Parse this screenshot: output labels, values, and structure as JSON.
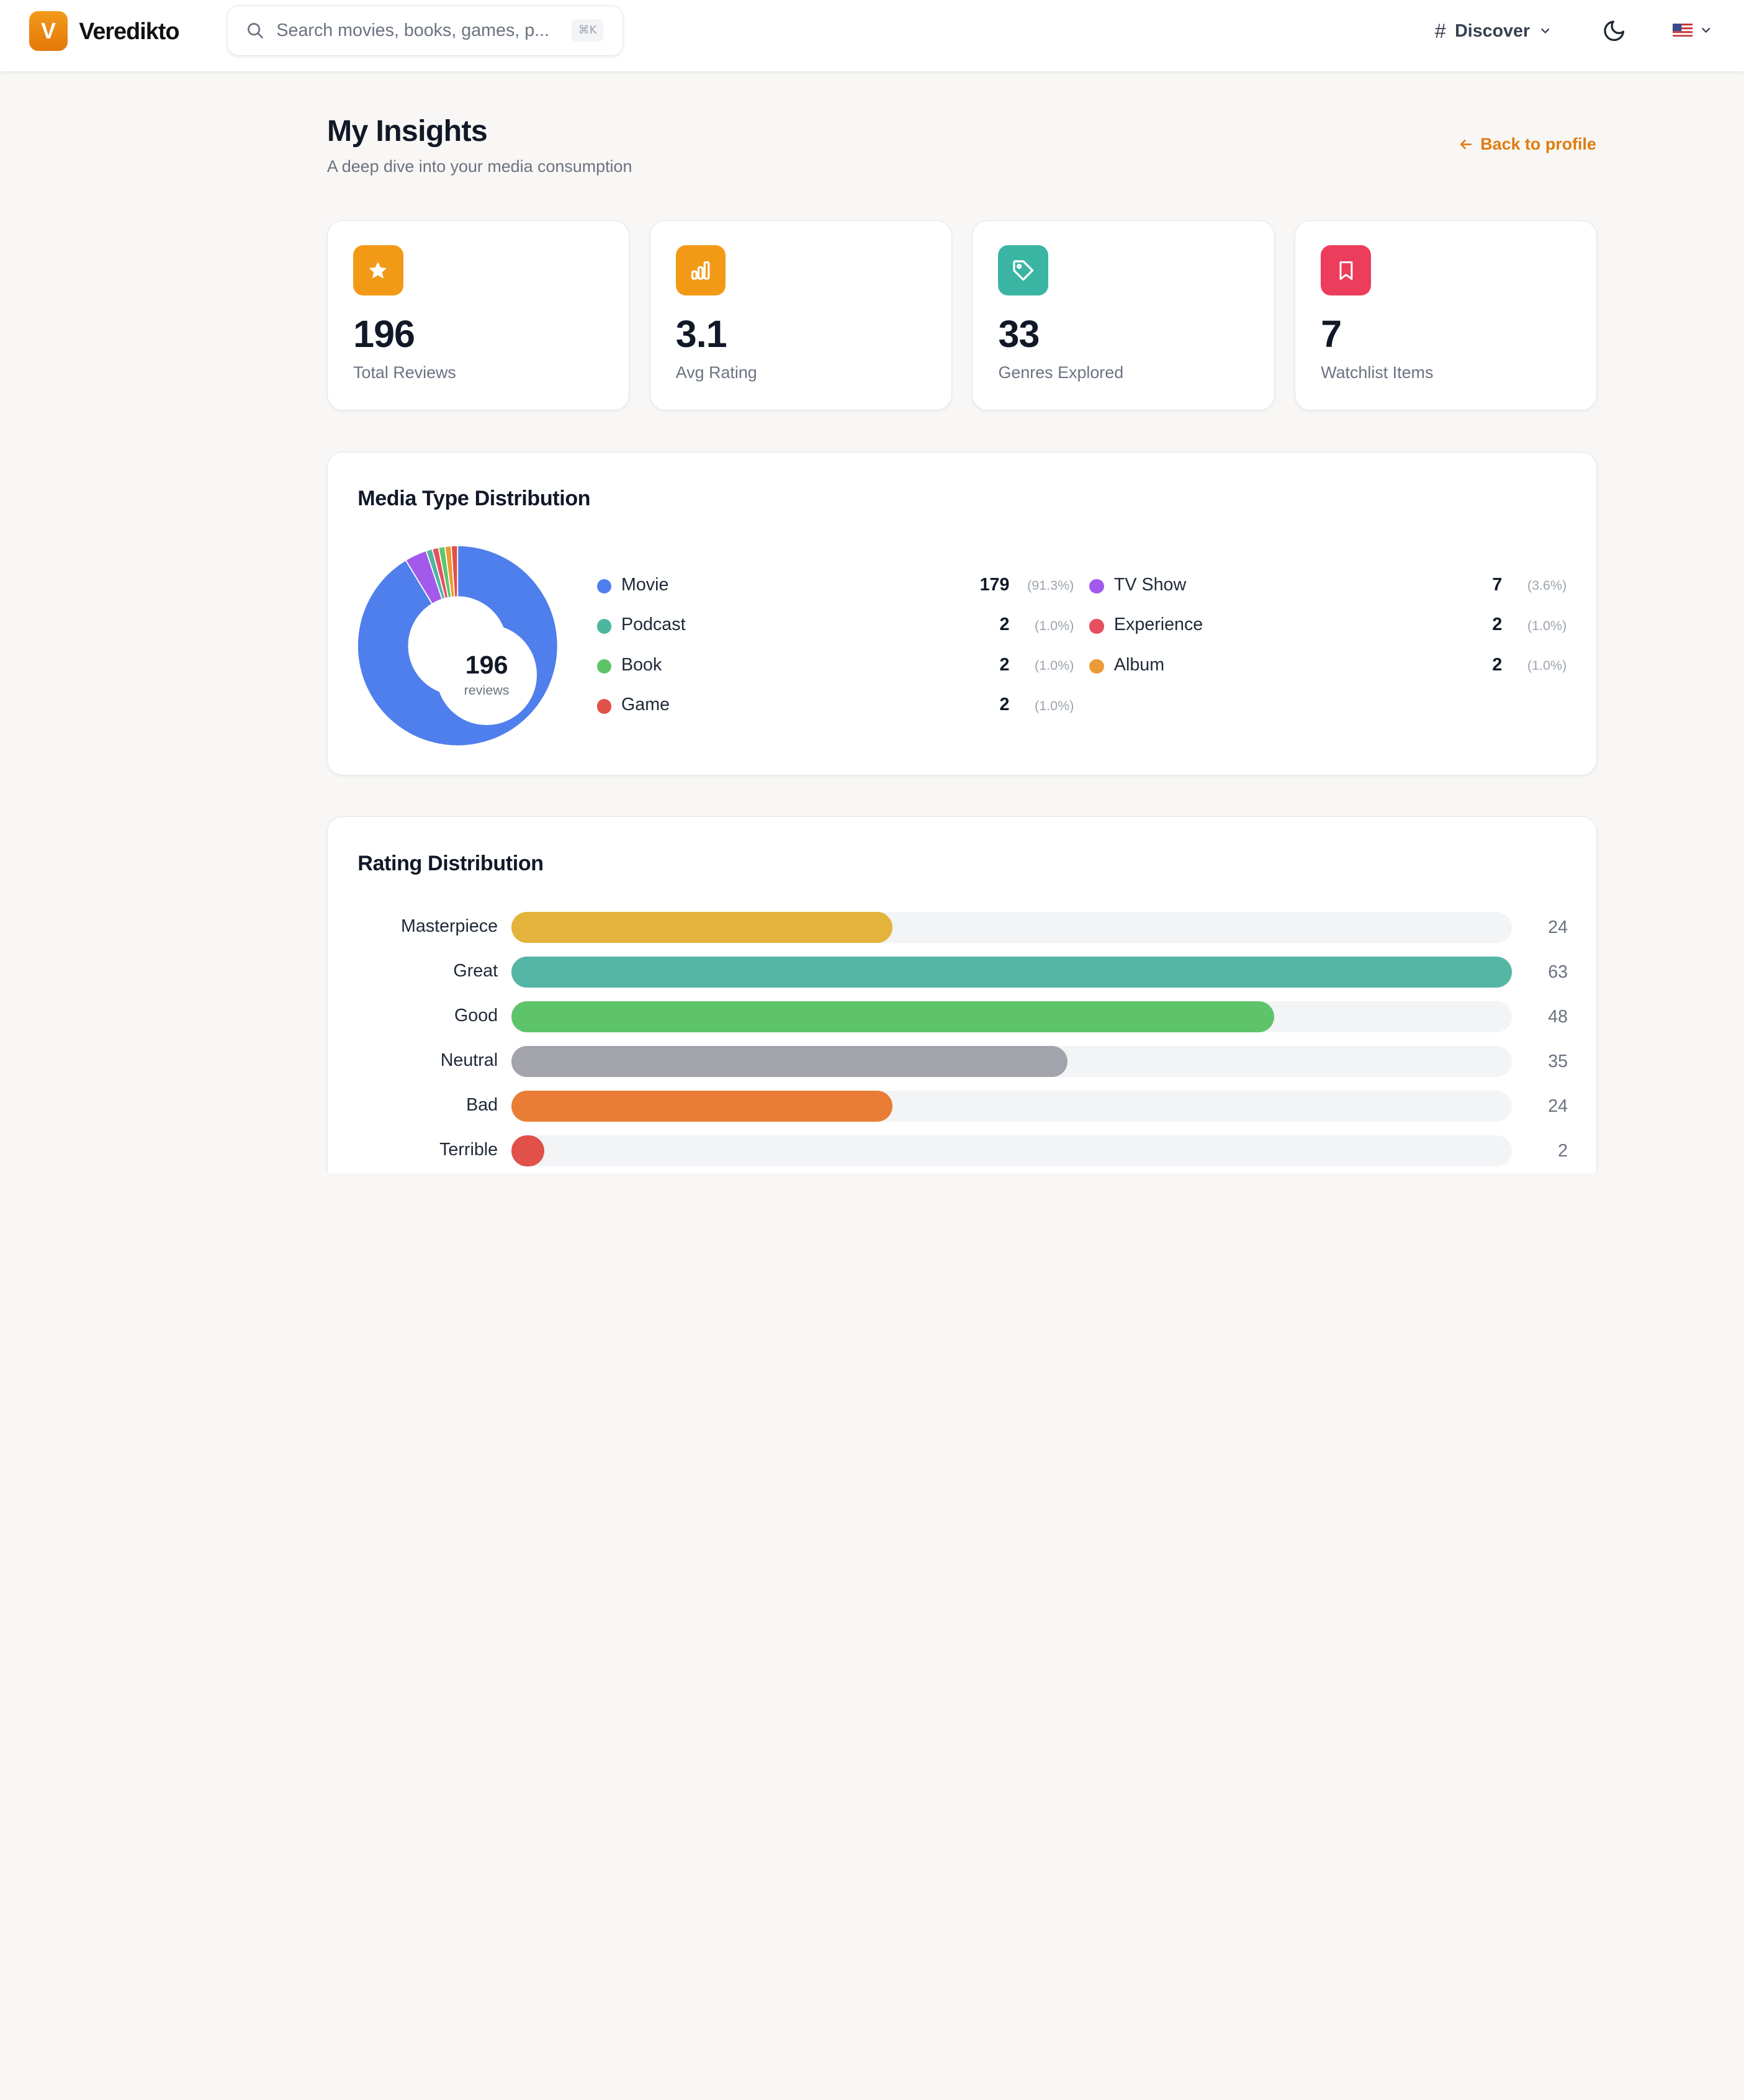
{
  "header": {
    "logo_letter": "V",
    "app_name": "Veredikto",
    "search_placeholder": "Search movies, books, games, p...",
    "search_shortcut": "⌘K",
    "nav_discover": "Discover",
    "language_flag": "us-flag-icon"
  },
  "page": {
    "title": "My Insights",
    "subtitle": "A deep dive into your media consumption",
    "back_link": "Back to profile"
  },
  "stats": [
    {
      "value": "196",
      "label": "Total Reviews",
      "icon": "star-icon",
      "color": "#f29a16"
    },
    {
      "value": "3.1",
      "label": "Avg Rating",
      "icon": "bar-chart-icon",
      "color": "#f29a16"
    },
    {
      "value": "33",
      "label": "Genres Explored",
      "icon": "tag-icon",
      "color": "#3ab5a3"
    },
    {
      "value": "7",
      "label": "Watchlist Items",
      "icon": "bookmark-icon",
      "color": "#ec3d5c"
    }
  ],
  "media_type": {
    "title": "Media Type Distribution",
    "total": "196",
    "total_unit": "reviews",
    "items": [
      {
        "name": "Movie",
        "count": "179",
        "pct": "(91.3%)",
        "color": "#4f7fec",
        "value": 179
      },
      {
        "name": "TV Show",
        "count": "7",
        "pct": "(3.6%)",
        "color": "#a259ec",
        "value": 7
      },
      {
        "name": "Podcast",
        "count": "2",
        "pct": "(1.0%)",
        "color": "#4db6a0",
        "value": 2
      },
      {
        "name": "Experience",
        "count": "2",
        "pct": "(1.0%)",
        "color": "#e5505f",
        "value": 2
      },
      {
        "name": "Book",
        "count": "2",
        "pct": "(1.0%)",
        "color": "#5ec46a",
        "value": 2
      },
      {
        "name": "Album",
        "count": "2",
        "pct": "(1.0%)",
        "color": "#ec9a36",
        "value": 2
      },
      {
        "name": "Game",
        "count": "2",
        "pct": "(1.0%)",
        "color": "#e2504a",
        "value": 2
      }
    ]
  },
  "rating_distribution": {
    "title": "Rating Distribution",
    "max": 63,
    "rows": [
      {
        "label": "Masterpiece",
        "value": "24",
        "count": 24,
        "color": "#e3b33c"
      },
      {
        "label": "Great",
        "value": "63",
        "count": 63,
        "color": "#55b6a5"
      },
      {
        "label": "Good",
        "value": "48",
        "count": 48,
        "color": "#5ec46a"
      },
      {
        "label": "Neutral",
        "value": "35",
        "count": 35,
        "color": "#a3a3ab"
      },
      {
        "label": "Bad",
        "value": "24",
        "count": 24,
        "color": "#e97d35"
      },
      {
        "label": "Terrible",
        "value": "2",
        "count": 2,
        "color": "#e2504a"
      }
    ]
  }
}
